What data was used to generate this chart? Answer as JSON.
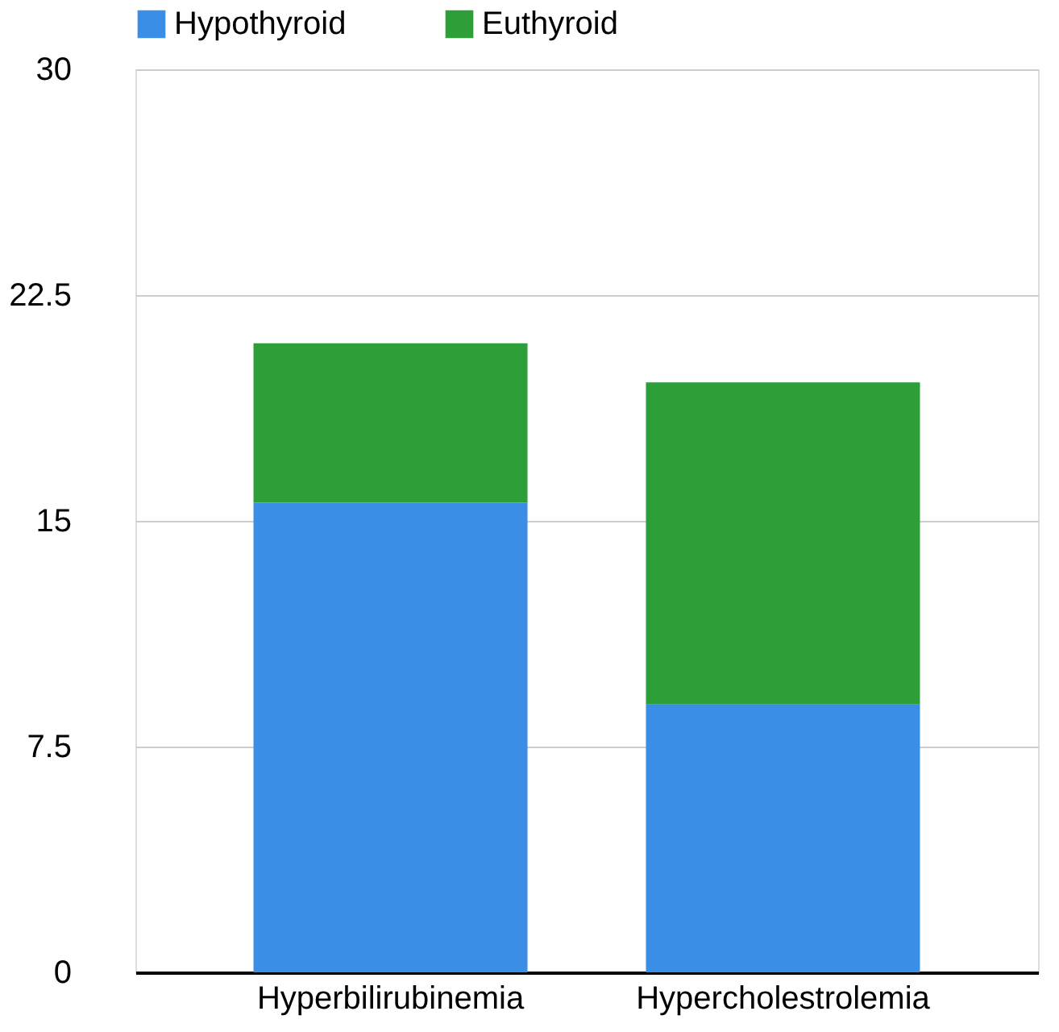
{
  "chart_data": {
    "type": "bar",
    "stacked": true,
    "categories": [
      "Hyperbilirubinemia",
      "Hypercholestrolemia"
    ],
    "series": [
      {
        "name": "Hypothyroid",
        "color": "#3a8ee6",
        "values": [
          15.6,
          8.9
        ]
      },
      {
        "name": "Euthyroid",
        "color": "#2e9e38",
        "values": [
          5.3,
          10.7
        ]
      }
    ],
    "ylim": [
      0,
      30
    ],
    "yticks": [
      0,
      7.5,
      15,
      22.5,
      30
    ],
    "grid": "y",
    "legend": "top"
  }
}
